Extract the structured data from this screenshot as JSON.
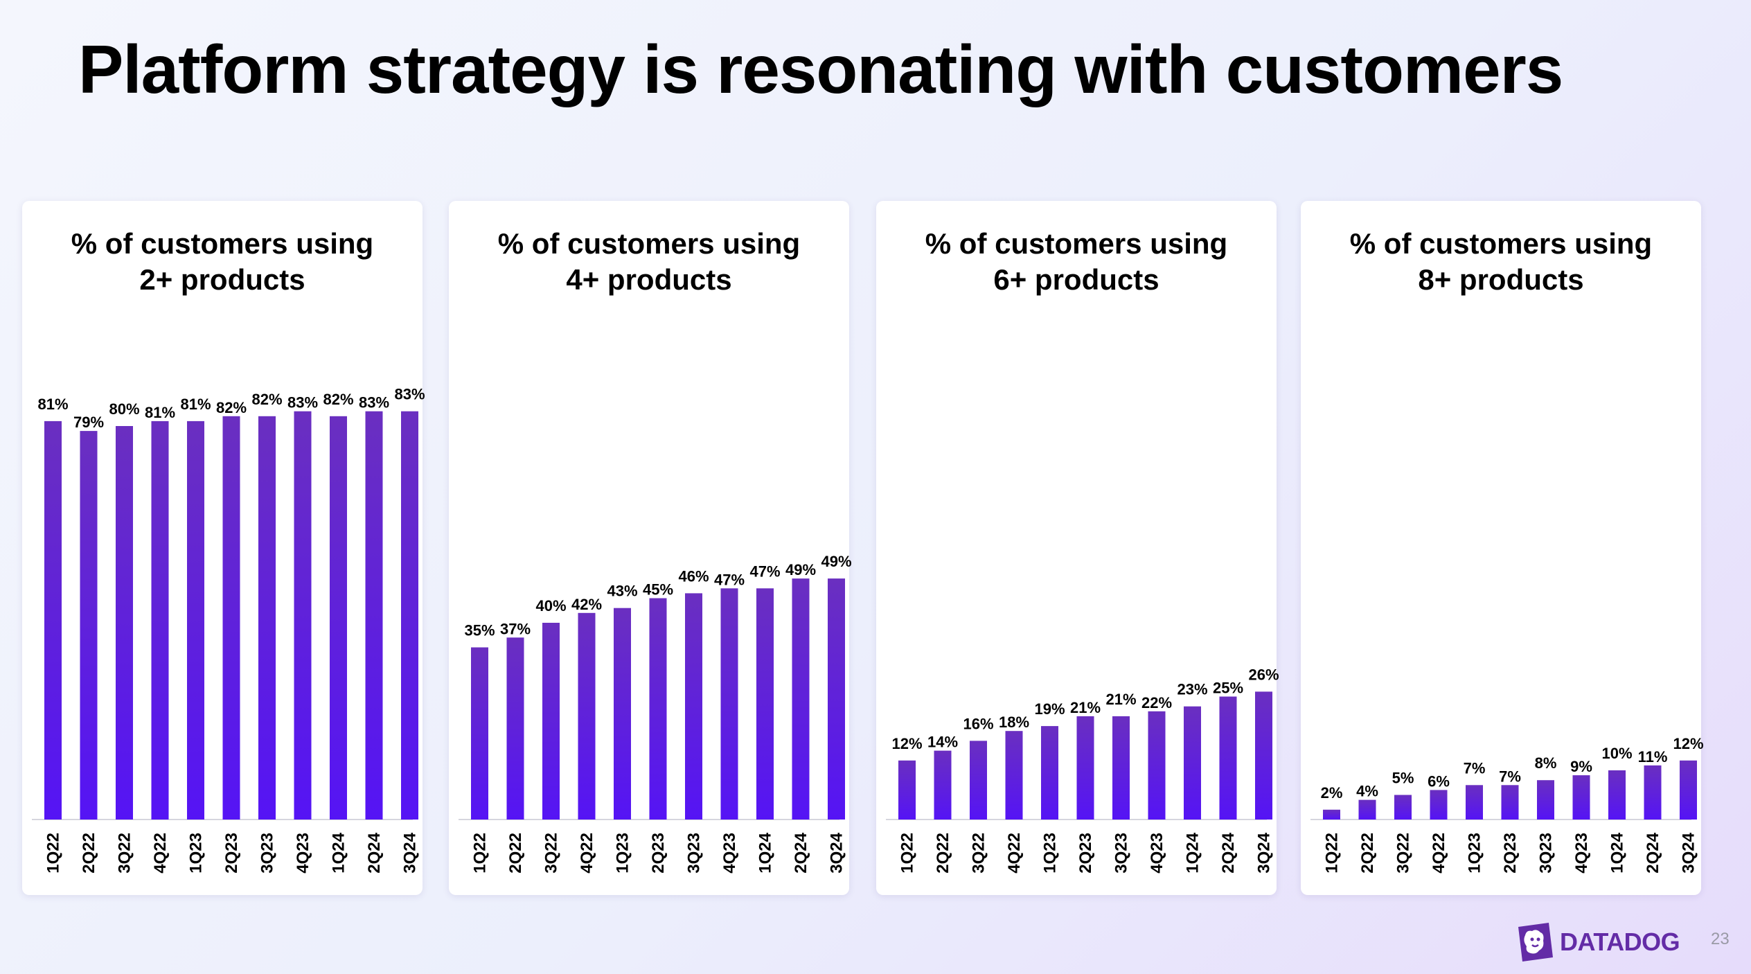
{
  "page": {
    "title": "Platform strategy is resonating with customers",
    "page_number": "23",
    "logo_text": "DATADOG",
    "logo_icon": "datadog-dog-icon",
    "colors": {
      "bar_top": "#6a2fc0",
      "bar_bottom": "#5514f5",
      "brand": "#632ca6"
    }
  },
  "chart_data": [
    {
      "type": "bar",
      "title_line1": "% of customers using",
      "title_line2": "2+ products",
      "categories": [
        "1Q22",
        "2Q22",
        "3Q22",
        "4Q22",
        "1Q23",
        "2Q23",
        "3Q23",
        "4Q23",
        "1Q24",
        "2Q24",
        "3Q24"
      ],
      "values": [
        81,
        79,
        80,
        81,
        81,
        82,
        82,
        83,
        82,
        83,
        83
      ],
      "labels": [
        "81%",
        "79%",
        "80%",
        "81%",
        "81%",
        "82%",
        "82%",
        "83%",
        "82%",
        "83%",
        "83%"
      ],
      "ylim": [
        0,
        100
      ]
    },
    {
      "type": "bar",
      "title_line1": "% of customers using",
      "title_line2": "4+ products",
      "categories": [
        "1Q22",
        "2Q22",
        "3Q22",
        "4Q22",
        "1Q23",
        "2Q23",
        "3Q23",
        "4Q23",
        "1Q24",
        "2Q24",
        "3Q24"
      ],
      "values": [
        35,
        37,
        40,
        42,
        43,
        45,
        46,
        47,
        47,
        49,
        49
      ],
      "labels": [
        "35%",
        "37%",
        "40%",
        "42%",
        "43%",
        "45%",
        "46%",
        "47%",
        "47%",
        "49%",
        "49%"
      ],
      "ylim": [
        0,
        100
      ]
    },
    {
      "type": "bar",
      "title_line1": "% of customers using",
      "title_line2": "6+ products",
      "categories": [
        "1Q22",
        "2Q22",
        "3Q22",
        "4Q22",
        "1Q23",
        "2Q23",
        "3Q23",
        "4Q23",
        "1Q24",
        "2Q24",
        "3Q24"
      ],
      "values": [
        12,
        14,
        16,
        18,
        19,
        21,
        21,
        22,
        23,
        25,
        26
      ],
      "labels": [
        "12%",
        "14%",
        "16%",
        "18%",
        "19%",
        "21%",
        "21%",
        "22%",
        "23%",
        "25%",
        "26%"
      ],
      "ylim": [
        0,
        100
      ]
    },
    {
      "type": "bar",
      "title_line1": "% of customers using",
      "title_line2": "8+ products",
      "categories": [
        "1Q22",
        "2Q22",
        "3Q22",
        "4Q22",
        "1Q23",
        "2Q23",
        "3Q23",
        "4Q23",
        "1Q24",
        "2Q24",
        "3Q24"
      ],
      "values": [
        2,
        4,
        5,
        6,
        7,
        7,
        8,
        9,
        10,
        11,
        12
      ],
      "labels": [
        "2%",
        "4%",
        "5%",
        "6%",
        "7%",
        "7%",
        "8%",
        "9%",
        "10%",
        "11%",
        "12%"
      ],
      "ylim": [
        0,
        100
      ]
    }
  ]
}
